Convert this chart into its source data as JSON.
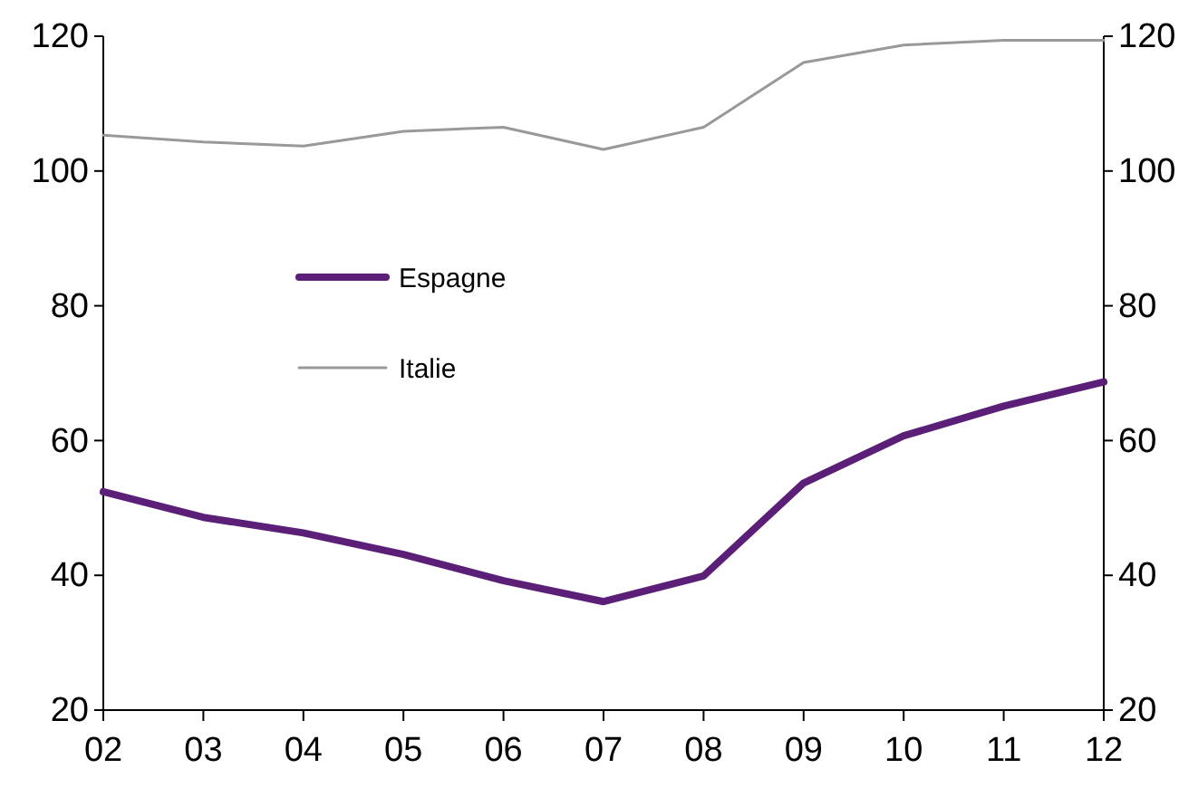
{
  "chart_data": {
    "type": "line",
    "categories": [
      "02",
      "03",
      "04",
      "05",
      "06",
      "07",
      "08",
      "09",
      "10",
      "11",
      "12"
    ],
    "series": [
      {
        "name": "Espagne",
        "color": "#5c1f78",
        "values": [
          52.4,
          48.6,
          46.3,
          43.1,
          39.2,
          36.1,
          39.9,
          53.7,
          60.7,
          65.1,
          68.7
        ]
      },
      {
        "name": "Italie",
        "color": "#999999",
        "values": [
          105.3,
          104.3,
          103.7,
          105.9,
          106.5,
          103.2,
          106.5,
          116.1,
          118.7,
          119.4,
          119.4
        ]
      }
    ],
    "ylim": [
      20,
      120
    ],
    "yticks": [
      20,
      40,
      60,
      80,
      100,
      120
    ],
    "y2lim": [
      20,
      120
    ],
    "y2ticks": [
      20,
      40,
      60,
      80,
      100,
      120
    ],
    "grid": false,
    "legend": "center",
    "marker": "none",
    "line_style": "solid"
  }
}
